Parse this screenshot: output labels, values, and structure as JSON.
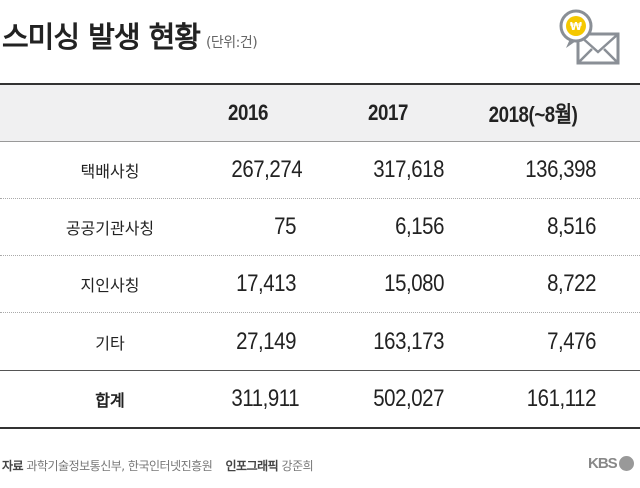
{
  "header": {
    "title": "스미싱 발생 현황",
    "unit": "(단위:건)",
    "icon": "won-coin-envelope-icon"
  },
  "table": {
    "columns": [
      "",
      "2016",
      "2017",
      "2018(~8월)"
    ],
    "rows": [
      {
        "label": "택배사칭",
        "values": [
          "267,274",
          "317,618",
          "136,398"
        ]
      },
      {
        "label": "공공기관사칭",
        "values": [
          "75",
          "6,156",
          "8,516"
        ]
      },
      {
        "label": "지인사칭",
        "values": [
          "17,413",
          "15,080",
          "8,722"
        ]
      },
      {
        "label": "기타",
        "values": [
          "27,149",
          "163,173",
          "7,476"
        ]
      }
    ],
    "total": {
      "label": "합계",
      "values": [
        "311,911",
        "502,027",
        "161,112"
      ]
    }
  },
  "footer": {
    "source_label": "자료",
    "source": "과학기술정보통신부, 한국인터넷진흥원",
    "graphic_label": "인포그래픽",
    "graphic": "강준희",
    "logo": "KBS"
  },
  "colors": {
    "accent": "#f5c800",
    "icon_gray": "#8a8f96"
  }
}
